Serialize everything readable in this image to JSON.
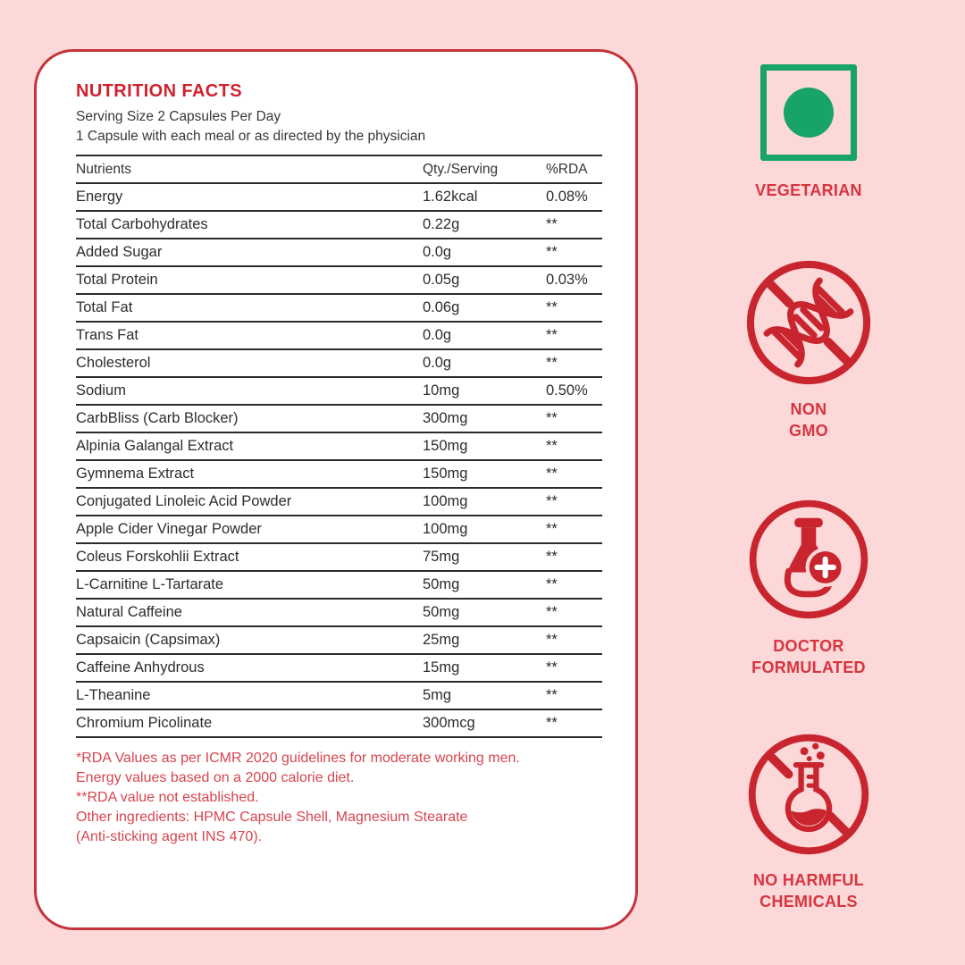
{
  "colors": {
    "background": "#fcd8d9",
    "card_background": "#ffffff",
    "card_border": "#c4343c",
    "title_red": "#d0222e",
    "footnote_red": "#d7454f",
    "badge_red": "#c8252f",
    "vegetarian_green": "#18a368",
    "table_ink": "#2d2d2d"
  },
  "label": {
    "title": "NUTRITION FACTS",
    "serving_line1": "Serving Size 2 Capsules Per Day",
    "serving_line2": "1 Capsule with each meal or as directed by the physician",
    "table": {
      "headers": [
        "Nutrients",
        "Qty./Serving",
        "%RDA"
      ],
      "rows": [
        [
          "Energy",
          "1.62kcal",
          "0.08%"
        ],
        [
          "Total Carbohydrates",
          "0.22g",
          "**"
        ],
        [
          "Added Sugar",
          "0.0g",
          "**"
        ],
        [
          "Total Protein",
          "0.05g",
          "0.03%"
        ],
        [
          "Total Fat",
          "0.06g",
          "**"
        ],
        [
          "Trans Fat",
          "0.0g",
          "**"
        ],
        [
          "Cholesterol",
          "0.0g",
          "**"
        ],
        [
          "Sodium",
          "10mg",
          "0.50%"
        ],
        [
          "CarbBliss (Carb Blocker)",
          "300mg",
          "**"
        ],
        [
          "Alpinia Galangal Extract",
          "150mg",
          "**"
        ],
        [
          "Gymnema Extract",
          "150mg",
          "**"
        ],
        [
          "Conjugated Linoleic Acid Powder",
          "100mg",
          "**"
        ],
        [
          "Apple Cider Vinegar Powder",
          "100mg",
          "**"
        ],
        [
          "Coleus Forskohlii Extract",
          "75mg",
          "**"
        ],
        [
          "L-Carnitine L-Tartarate",
          "50mg",
          "**"
        ],
        [
          "Natural Caffeine",
          "50mg",
          "**"
        ],
        [
          "Capsaicin (Capsimax)",
          "25mg",
          "**"
        ],
        [
          "Caffeine Anhydrous",
          "15mg",
          "**"
        ],
        [
          "L-Theanine",
          "5mg",
          "**"
        ],
        [
          "Chromium Picolinate",
          "300mcg",
          "**"
        ]
      ]
    },
    "footnotes": [
      "*RDA Values as per ICMR 2020 guidelines for moderate working men.",
      "Energy values based on a 2000 calorie diet.",
      "**RDA value not established.",
      "Other ingredients: HPMC Capsule Shell, Magnesium Stearate",
      "(Anti-sticking agent INS 470)."
    ]
  },
  "badges": [
    {
      "id": "vegetarian",
      "icon": "vegetarian-mark-icon",
      "lines": [
        "VEGETARIAN"
      ]
    },
    {
      "id": "non-gmo",
      "icon": "dna-crossed-icon",
      "lines": [
        "NON",
        "GMO"
      ]
    },
    {
      "id": "doctor-formulated",
      "icon": "flask-plus-icon",
      "lines": [
        "DOCTOR",
        "FORMULATED"
      ]
    },
    {
      "id": "no-harmful-chemicals",
      "icon": "flask-crossed-icon",
      "lines": [
        "NO HARMFUL",
        "CHEMICALS"
      ]
    }
  ]
}
